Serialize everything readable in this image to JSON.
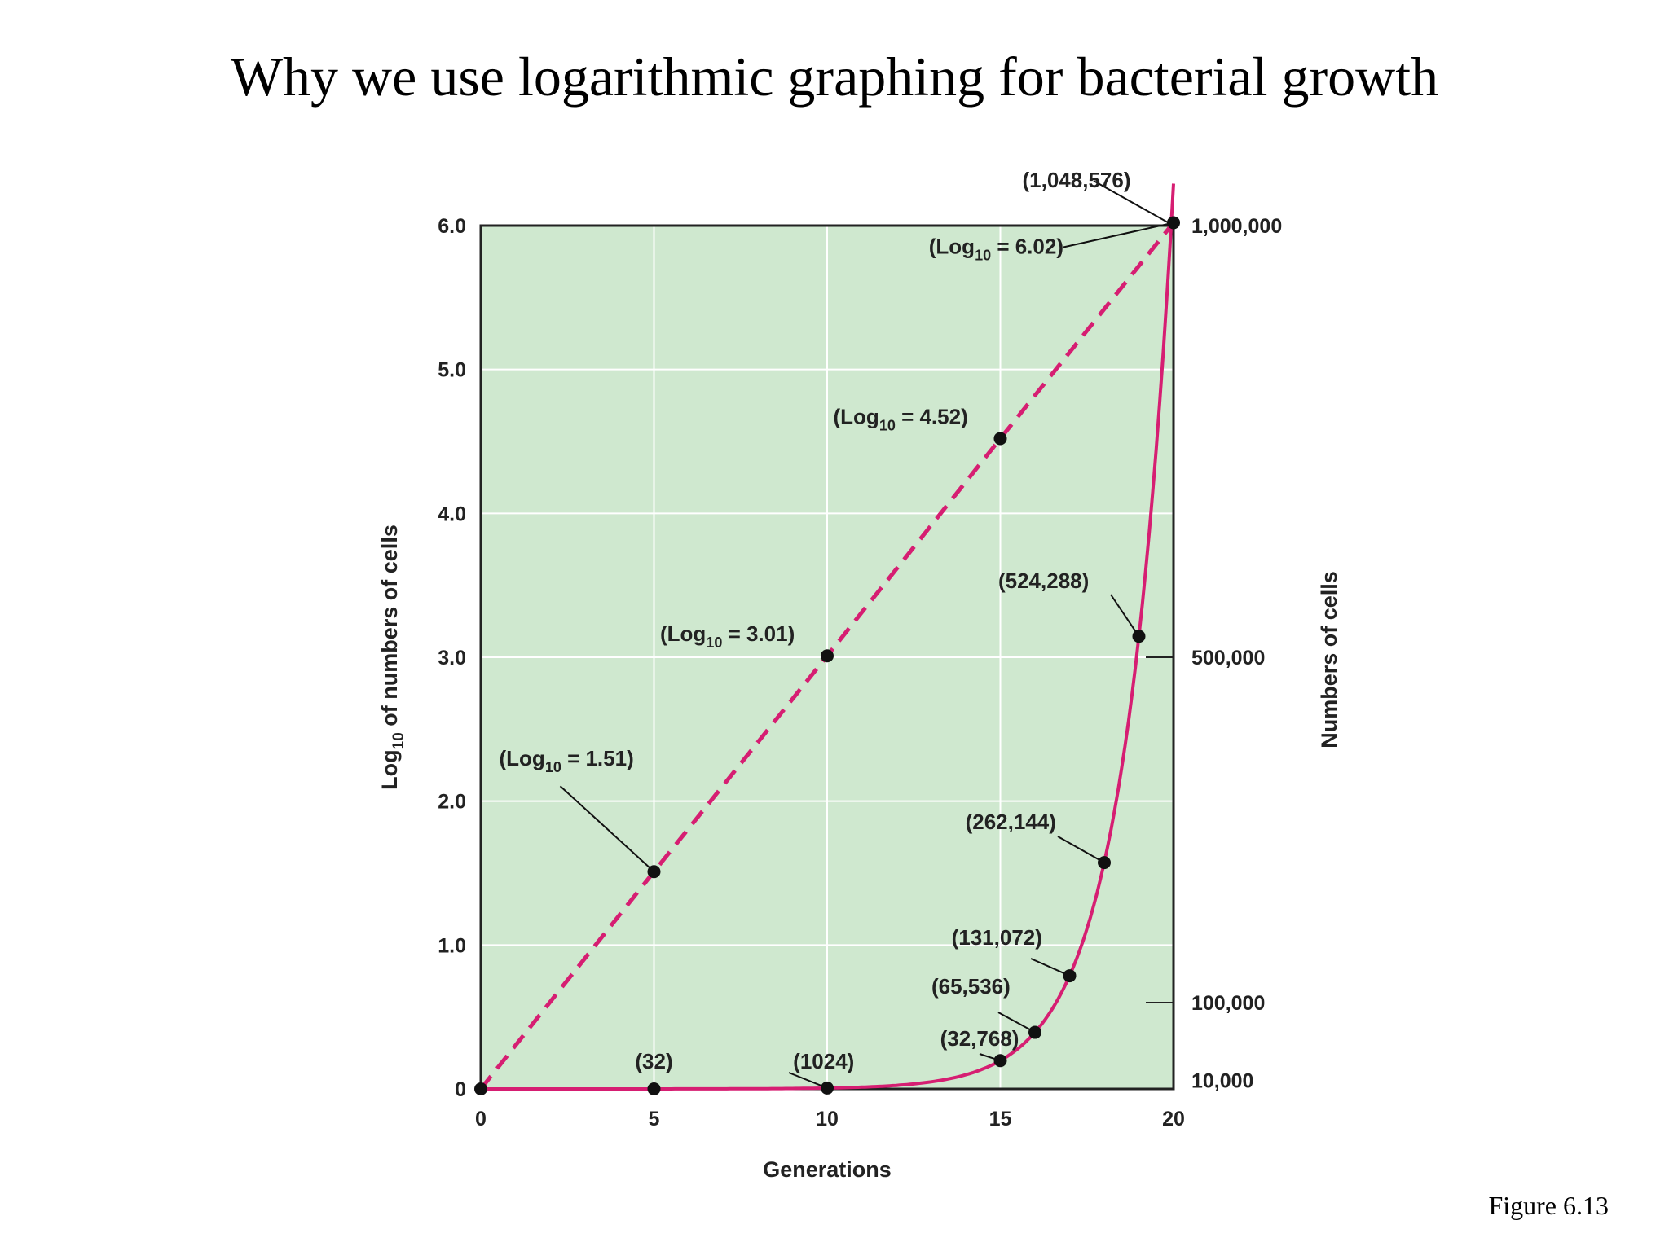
{
  "slide": {
    "title": "Why we use logarithmic graphing for bacterial growth",
    "caption": "Figure 6.13"
  },
  "colors": {
    "plot_background": "#cfe8cf",
    "curve": "#d61e72",
    "point": "#111111",
    "grid": "#ffffff"
  },
  "chart_data": {
    "type": "line",
    "title": "",
    "xlabel": "Generations",
    "ylabel": "Log10 of numbers of cells",
    "ylabel_parts": {
      "base": "Log",
      "sub": "10",
      "rest": " of numbers of cells"
    },
    "y2label": "Numbers of cells",
    "xlim": [
      0,
      20
    ],
    "ylim": [
      0,
      6
    ],
    "y2lim": [
      0,
      1000000
    ],
    "x_ticks": [
      0,
      5,
      10,
      15,
      20
    ],
    "x_tick_labels": [
      "0",
      "5",
      "10",
      "15",
      "20"
    ],
    "y_ticks": [
      0,
      1,
      2,
      3,
      4,
      5,
      6
    ],
    "y_tick_labels": [
      "0",
      "1.0",
      "2.0",
      "3.0",
      "4.0",
      "5.0",
      "6.0"
    ],
    "y2_ticks": [
      10000,
      100000,
      500000,
      1000000
    ],
    "y2_tick_labels": [
      "10,000",
      "100,000",
      "500,000",
      "1,000,000"
    ],
    "grid": true,
    "series": [
      {
        "style": "dashed",
        "axis": "left",
        "x": [
          0,
          5,
          10,
          15,
          20
        ],
        "y": [
          0,
          1.51,
          3.01,
          4.52,
          6.02
        ],
        "labeled_points": [
          {
            "x": 5,
            "y": 1.51,
            "label": {
              "pre": "(Log",
              "sub": "10",
              "post": " = 1.51)"
            }
          },
          {
            "x": 10,
            "y": 3.01,
            "label": {
              "pre": "(Log",
              "sub": "10",
              "post": " = 3.01)"
            }
          },
          {
            "x": 15,
            "y": 4.52,
            "label": {
              "pre": "(Log",
              "sub": "10",
              "post": " = 4.52)"
            }
          },
          {
            "x": 20,
            "y": 6.02,
            "label": {
              "pre": "(Log",
              "sub": "10",
              "post": " = 6.02)"
            }
          }
        ]
      },
      {
        "style": "solid",
        "axis": "right",
        "x": [
          0,
          5,
          10,
          15,
          16,
          17,
          18,
          19,
          20
        ],
        "y": [
          1,
          32,
          1024,
          32768,
          65536,
          131072,
          262144,
          524288,
          1048576
        ],
        "labels": [
          "",
          "(32)",
          "(1024)",
          "(32,768)",
          "(65,536)",
          "(131,072)",
          "(262,144)",
          "(524,288)",
          "(1,048,576)"
        ]
      }
    ]
  }
}
